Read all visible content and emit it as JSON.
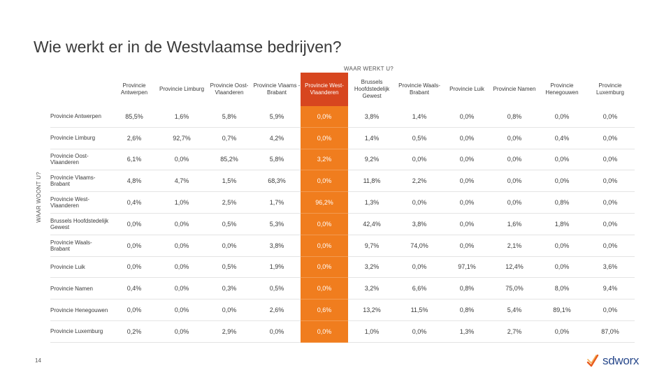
{
  "slide": {
    "title": "Wie werkt er in de Westvlaamse bedrijven?",
    "page_number": "14",
    "logo_text": "sdworx",
    "highlight_color": "#f07d1e",
    "highlight_header_color": "#d7461f"
  },
  "chart_data": {
    "type": "table",
    "column_axis_label": "WAAR WERKT U?",
    "row_axis_label": "WAAR WOONT U?",
    "highlighted_column": "Provincie West-Vlaanderen",
    "columns": [
      "Provincie Antwerpen",
      "Provincie Limburg",
      "Provincie Oost-Vlaanderen",
      "Provincie Vlaams -Brabant",
      "Provincie West-Vlaanderen",
      "Brussels Hoofdstedelijk Gewest",
      "Provincie Waals-Brabant",
      "Provincie Luik",
      "Provincie Namen",
      "Provincie Henegouwen",
      "Provincie Luxemburg"
    ],
    "rows": [
      {
        "label": "Provincie Antwerpen",
        "values": [
          "85,5%",
          "1,6%",
          "5,8%",
          "5,9%",
          "0,0%",
          "3,8%",
          "1,4%",
          "0,0%",
          "0,8%",
          "0,0%",
          "0,0%"
        ]
      },
      {
        "label": "Provincie Limburg",
        "values": [
          "2,6%",
          "92,7%",
          "0,7%",
          "4,2%",
          "0,0%",
          "1,4%",
          "0,5%",
          "0,0%",
          "0,0%",
          "0,4%",
          "0,0%"
        ]
      },
      {
        "label": "Provincie Oost-Vlaanderen",
        "values": [
          "6,1%",
          "0,0%",
          "85,2%",
          "5,8%",
          "3,2%",
          "9,2%",
          "0,0%",
          "0,0%",
          "0,0%",
          "0,0%",
          "0,0%"
        ]
      },
      {
        "label": "Provincie Vlaams-Brabant",
        "values": [
          "4,8%",
          "4,7%",
          "1,5%",
          "68,3%",
          "0,0%",
          "11,8%",
          "2,2%",
          "0,0%",
          "0,0%",
          "0,0%",
          "0,0%"
        ]
      },
      {
        "label": "Provincie West-Vlaanderen",
        "values": [
          "0,4%",
          "1,0%",
          "2,5%",
          "1,7%",
          "96,2%",
          "1,3%",
          "0,0%",
          "0,0%",
          "0,0%",
          "0,8%",
          "0,0%"
        ]
      },
      {
        "label": "Brussels Hoofdstedelijk Gewest",
        "values": [
          "0,0%",
          "0,0%",
          "0,5%",
          "5,3%",
          "0,0%",
          "42,4%",
          "3,8%",
          "0,0%",
          "1,6%",
          "1,8%",
          "0,0%"
        ]
      },
      {
        "label": "Provincie Waals-Brabant",
        "values": [
          "0,0%",
          "0,0%",
          "0,0%",
          "3,8%",
          "0,0%",
          "9,7%",
          "74,0%",
          "0,0%",
          "2,1%",
          "0,0%",
          "0,0%"
        ]
      },
      {
        "label": "Provincie Luik",
        "values": [
          "0,0%",
          "0,0%",
          "0,5%",
          "1,9%",
          "0,0%",
          "3,2%",
          "0,0%",
          "97,1%",
          "12,4%",
          "0,0%",
          "3,6%"
        ]
      },
      {
        "label": "Provincie Namen",
        "values": [
          "0,4%",
          "0,0%",
          "0,3%",
          "0,5%",
          "0,0%",
          "3,2%",
          "6,6%",
          "0,8%",
          "75,0%",
          "8,0%",
          "9,4%"
        ]
      },
      {
        "label": "Provincie Henegouwen",
        "values": [
          "0,0%",
          "0,0%",
          "0,0%",
          "2,6%",
          "0,6%",
          "13,2%",
          "11,5%",
          "0,8%",
          "5,4%",
          "89,1%",
          "0,0%"
        ]
      },
      {
        "label": "Provincie Luxemburg",
        "values": [
          "0,2%",
          "0,0%",
          "2,9%",
          "0,0%",
          "0,0%",
          "1,0%",
          "0,0%",
          "1,3%",
          "2,7%",
          "0,0%",
          "87,0%"
        ]
      }
    ]
  }
}
